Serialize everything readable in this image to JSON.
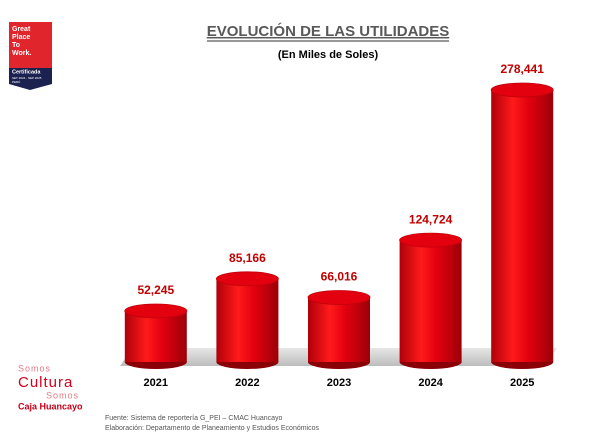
{
  "chart_data": {
    "type": "cylinder-bar",
    "title": "EVOLUCIÓN DE LAS UTILIDADES",
    "subtitle": "(En Miles de Soles)",
    "categories": [
      "2021",
      "2022",
      "2023",
      "2024",
      "2025"
    ],
    "values": [
      52245,
      85166,
      66016,
      124724,
      278441
    ],
    "value_labels": [
      "52,245",
      "85,166",
      "66,016",
      "124,724",
      "278,441"
    ],
    "color": "#e3000f"
  },
  "footnotes": [
    "Fuente: Sistema de reportería G_PEI – CMAC Huancayo",
    "Elaboración: Departamento de Planeamiento y Estudios Económicos"
  ],
  "badge": {
    "lines": [
      "Great",
      "Place",
      "To",
      "Work."
    ],
    "status": "Certificada",
    "period": "SET 2024 - SEP 2025",
    "country": "PERÚ"
  },
  "brand": {
    "line1": "Somos",
    "line2": "Cultura",
    "line3": "Somos",
    "name": "Caja Huancayo"
  }
}
